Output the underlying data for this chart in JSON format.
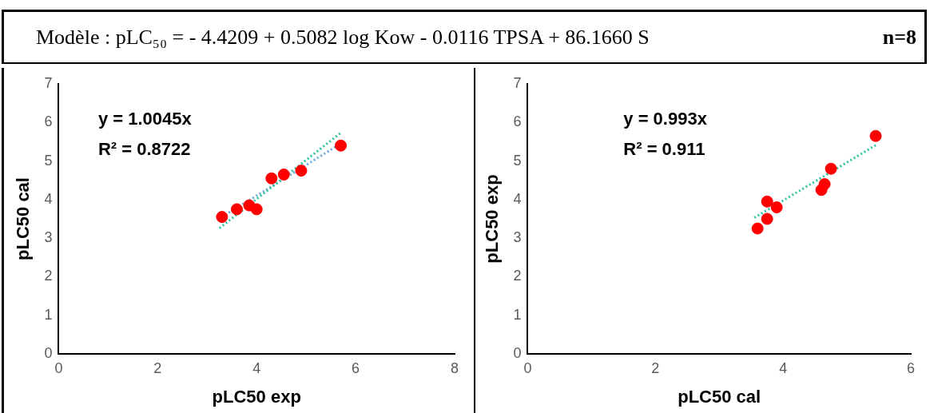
{
  "chart_data": [
    {
      "type": "other",
      "title": "Modèle : pLC₅₀ = - 4.4209 + 0.5082 log Kow - 0.0116 TPSA + 86.1660 S",
      "annotations": [
        "n=8"
      ]
    },
    {
      "type": "scatter",
      "xlabel": "pLC50 exp",
      "ylabel": "pLC50 cal",
      "xlim": [
        0,
        8
      ],
      "ylim": [
        0,
        7
      ],
      "xticks": [
        0,
        2,
        4,
        6,
        8
      ],
      "yticks": [
        0,
        1,
        2,
        3,
        4,
        5,
        6,
        7
      ],
      "grid": false,
      "legend": false,
      "annotations": [
        "y = 1.0045x",
        "R² = 0.8722"
      ],
      "series": [
        {
          "type": "scatter",
          "marker": "circle",
          "color": "#ff0000",
          "x": [
            3.3,
            3.6,
            3.85,
            4.0,
            4.3,
            4.55,
            4.9,
            5.7
          ],
          "values": [
            3.55,
            3.75,
            3.85,
            3.75,
            4.55,
            4.65,
            4.75,
            5.4
          ]
        },
        {
          "type": "line",
          "marker": "none",
          "color": "#2ec4a0",
          "line_style": "dotted",
          "x": [
            3.25,
            5.7
          ],
          "values": [
            3.26,
            5.73
          ]
        },
        {
          "type": "line",
          "marker": "none",
          "color": "#6fa8dc",
          "line_style": "dotted",
          "x": [
            3.3,
            5.7
          ],
          "values": [
            3.55,
            5.45
          ]
        }
      ]
    },
    {
      "type": "scatter",
      "xlabel": "pLC50 cal",
      "ylabel": "pLC50 exp",
      "xlim": [
        0,
        6
      ],
      "ylim": [
        0,
        7
      ],
      "xticks": [
        0,
        2,
        4,
        6
      ],
      "yticks": [
        0,
        1,
        2,
        3,
        4,
        5,
        6,
        7
      ],
      "grid": false,
      "legend": false,
      "annotations": [
        "y = 0.993x",
        "R² = 0.911"
      ],
      "series": [
        {
          "type": "scatter",
          "marker": "circle",
          "color": "#ff0000",
          "x": [
            3.6,
            3.75,
            3.75,
            3.9,
            4.6,
            4.65,
            4.75,
            5.45
          ],
          "values": [
            3.25,
            3.5,
            3.95,
            3.8,
            4.25,
            4.4,
            4.8,
            5.65
          ]
        },
        {
          "type": "line",
          "marker": "none",
          "color": "#2ec4a0",
          "line_style": "dotted",
          "x": [
            3.55,
            5.45
          ],
          "values": [
            3.53,
            5.41
          ]
        }
      ]
    }
  ]
}
